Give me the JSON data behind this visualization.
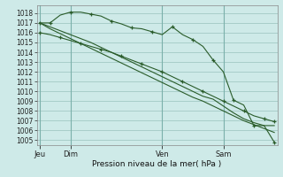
{
  "background_color": "#ceeae8",
  "grid_color": "#a8ceca",
  "line_color": "#2a5c2a",
  "title": "Pression niveau de la mer( hPa )",
  "ylim": [
    1004.5,
    1018.8
  ],
  "yticks": [
    1005,
    1006,
    1007,
    1008,
    1009,
    1010,
    1011,
    1012,
    1013,
    1014,
    1015,
    1016,
    1017,
    1018
  ],
  "day_labels": [
    "Jeu",
    "Dim",
    "Ven",
    "Sam"
  ],
  "day_positions": [
    0,
    3,
    12,
    18
  ],
  "n_points": 24,
  "xlim": [
    -0.3,
    23.3
  ],
  "lines": [
    [
      1017.0,
      1017.0,
      1017.8,
      1018.1,
      1018.1,
      1017.9,
      1017.7,
      1017.2,
      1016.9,
      1016.5,
      1016.4,
      1016.1,
      1015.8,
      1016.6,
      1015.8,
      1015.3,
      1014.6,
      1013.2,
      1012.0,
      1009.1,
      1008.6,
      1006.5,
      1006.5,
      1004.8
    ],
    [
      1017.0,
      1016.6,
      1016.2,
      1015.8,
      1015.4,
      1015.0,
      1014.5,
      1014.0,
      1013.5,
      1013.0,
      1012.5,
      1012.0,
      1011.5,
      1011.0,
      1010.5,
      1010.0,
      1009.5,
      1009.2,
      1008.5,
      1007.8,
      1007.2,
      1006.8,
      1006.5,
      1006.5
    ],
    [
      1017.0,
      1016.4,
      1015.9,
      1015.4,
      1014.9,
      1014.4,
      1013.9,
      1013.4,
      1012.9,
      1012.4,
      1011.9,
      1011.4,
      1010.9,
      1010.4,
      1009.9,
      1009.4,
      1009.0,
      1008.5,
      1008.0,
      1007.5,
      1007.0,
      1006.6,
      1006.2,
      1005.8
    ],
    [
      1016.0,
      1015.8,
      1015.5,
      1015.2,
      1014.9,
      1014.6,
      1014.3,
      1014.0,
      1013.6,
      1013.2,
      1012.8,
      1012.4,
      1012.0,
      1011.5,
      1011.0,
      1010.5,
      1010.0,
      1009.5,
      1009.0,
      1008.5,
      1008.0,
      1007.5,
      1007.2,
      1006.9
    ]
  ],
  "markers": [
    [
      0,
      1,
      3,
      5,
      7,
      9,
      11,
      13,
      15,
      17,
      19,
      21,
      23
    ],
    [],
    [],
    [
      0,
      2,
      4,
      6,
      8,
      10,
      12,
      14,
      16,
      18,
      20,
      22,
      23
    ]
  ],
  "title_fontsize": 6.5,
  "tick_fontsize": 5.5,
  "xlabel_fontsize": 6.5
}
